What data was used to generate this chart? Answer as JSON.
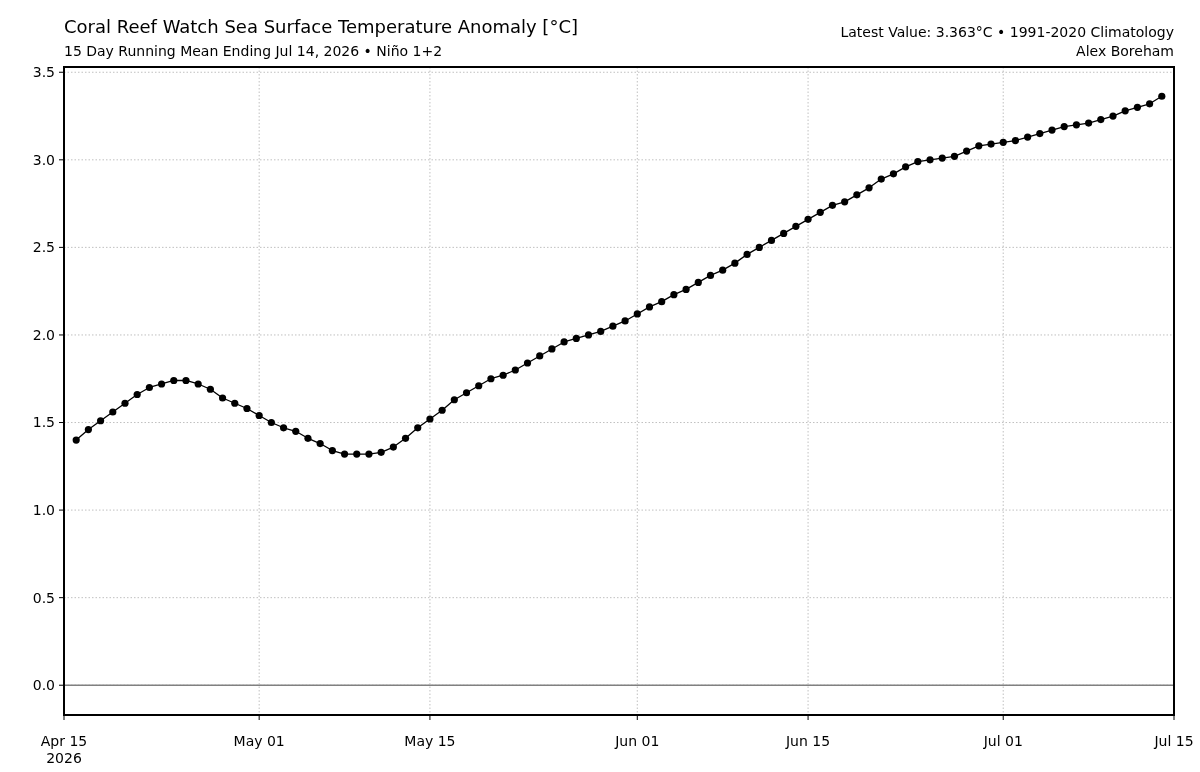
{
  "chart_data": {
    "type": "line",
    "title": "Coral Reef Watch Sea Surface Temperature Anomaly [°C]",
    "subtitle": "15 Day Running Mean Ending Jul 14, 2026 • Niño 1+2",
    "annotations": [
      "Latest Value: 3.363°C • 1991-2020 Climatology",
      "Alex Boreham"
    ],
    "x": [
      "2026-04-16",
      "2026-04-17",
      "2026-04-18",
      "2026-04-19",
      "2026-04-20",
      "2026-04-21",
      "2026-04-22",
      "2026-04-23",
      "2026-04-24",
      "2026-04-25",
      "2026-04-26",
      "2026-04-27",
      "2026-04-28",
      "2026-04-29",
      "2026-04-30",
      "2026-05-01",
      "2026-05-02",
      "2026-05-03",
      "2026-05-04",
      "2026-05-05",
      "2026-05-06",
      "2026-05-07",
      "2026-05-08",
      "2026-05-09",
      "2026-05-10",
      "2026-05-11",
      "2026-05-12",
      "2026-05-13",
      "2026-05-14",
      "2026-05-15",
      "2026-05-16",
      "2026-05-17",
      "2026-05-18",
      "2026-05-19",
      "2026-05-20",
      "2026-05-21",
      "2026-05-22",
      "2026-05-23",
      "2026-05-24",
      "2026-05-25",
      "2026-05-26",
      "2026-05-27",
      "2026-05-28",
      "2026-05-29",
      "2026-05-30",
      "2026-05-31",
      "2026-06-01",
      "2026-06-02",
      "2026-06-03",
      "2026-06-04",
      "2026-06-05",
      "2026-06-06",
      "2026-06-07",
      "2026-06-08",
      "2026-06-09",
      "2026-06-10",
      "2026-06-11",
      "2026-06-12",
      "2026-06-13",
      "2026-06-14",
      "2026-06-15",
      "2026-06-16",
      "2026-06-17",
      "2026-06-18",
      "2026-06-19",
      "2026-06-20",
      "2026-06-21",
      "2026-06-22",
      "2026-06-23",
      "2026-06-24",
      "2026-06-25",
      "2026-06-26",
      "2026-06-27",
      "2026-06-28",
      "2026-06-29",
      "2026-06-30",
      "2026-07-01",
      "2026-07-02",
      "2026-07-03",
      "2026-07-04",
      "2026-07-05",
      "2026-07-06",
      "2026-07-07",
      "2026-07-08",
      "2026-07-09",
      "2026-07-10",
      "2026-07-11",
      "2026-07-12",
      "2026-07-13",
      "2026-07-14"
    ],
    "series": [
      {
        "color": "#000000",
        "values": [
          1.4,
          1.46,
          1.51,
          1.56,
          1.61,
          1.66,
          1.7,
          1.72,
          1.74,
          1.74,
          1.72,
          1.69,
          1.64,
          1.61,
          1.58,
          1.54,
          1.5,
          1.47,
          1.45,
          1.41,
          1.38,
          1.34,
          1.32,
          1.32,
          1.32,
          1.33,
          1.36,
          1.41,
          1.47,
          1.52,
          1.57,
          1.63,
          1.67,
          1.71,
          1.75,
          1.77,
          1.8,
          1.84,
          1.88,
          1.92,
          1.96,
          1.98,
          2.0,
          2.02,
          2.05,
          2.08,
          2.12,
          2.16,
          2.19,
          2.23,
          2.26,
          2.3,
          2.34,
          2.37,
          2.41,
          2.46,
          2.5,
          2.54,
          2.58,
          2.62,
          2.66,
          2.7,
          2.74,
          2.76,
          2.8,
          2.84,
          2.89,
          2.92,
          2.96,
          2.99,
          3.0,
          3.01,
          3.02,
          3.05,
          3.08,
          3.09,
          3.1,
          3.11,
          3.13,
          3.15,
          3.17,
          3.19,
          3.2,
          3.21,
          3.23,
          3.25,
          3.28,
          3.3,
          3.32,
          3.363
        ]
      }
    ],
    "xlim": [
      "2026-04-15",
      "2026-07-15"
    ],
    "xticks": [
      {
        "value": "2026-04-15",
        "label": "Apr 15\n2026"
      },
      {
        "value": "2026-05-01",
        "label": "May 01"
      },
      {
        "value": "2026-05-15",
        "label": "May 15"
      },
      {
        "value": "2026-06-01",
        "label": "Jun 01"
      },
      {
        "value": "2026-06-15",
        "label": "Jun 15"
      },
      {
        "value": "2026-07-01",
        "label": "Jul 01"
      },
      {
        "value": "2026-07-15",
        "label": "Jul 15"
      }
    ],
    "ylim": [
      -0.17,
      3.53
    ],
    "yticks": [
      {
        "value": 0,
        "label": "0.0"
      },
      {
        "value": 0.5,
        "label": "0.5"
      },
      {
        "value": 1,
        "label": "1.0"
      },
      {
        "value": 1.5,
        "label": "1.5"
      },
      {
        "value": 2,
        "label": "2.0"
      },
      {
        "value": 2.5,
        "label": "2.5"
      },
      {
        "value": 3,
        "label": "3.0"
      },
      {
        "value": 3.5,
        "label": "3.5"
      }
    ],
    "grid": true,
    "marker": "circle",
    "line_style": "solid",
    "ref_lines": [
      {
        "axis": "y",
        "value": 0,
        "color": "#808080"
      }
    ]
  }
}
